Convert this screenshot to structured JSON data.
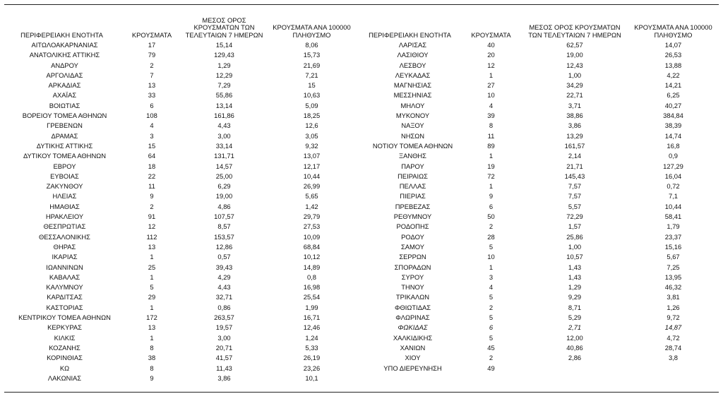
{
  "headers": {
    "region": "ΠΕΡΙΦΕΡΕΙΑΚΗ ΕΝΟΤΗΤΑ",
    "cases": "ΚΡΟΥΣΜΑΤΑ",
    "avg7": "ΜΕΣΟΣ ΟΡΟΣ ΚΡΟΥΣΜΑΤΩΝ ΤΩΝ ΤΕΛΕΥΤΑΙΩΝ 7 ΗΜΕΡΩΝ",
    "per100k": "ΚΡΟΥΣΜΑΤΑ ΑΝΑ 100000 ΠΛΗΘΥΣΜΟ"
  },
  "left_rows": [
    {
      "region": "ΑΙΤΩΛΟΑΚΑΡΝΑΝΙΑΣ",
      "cases": "17",
      "avg7": "15,14",
      "per100k": "8,06"
    },
    {
      "region": "ΑΝΑΤΟΛΙΚΗΣ ΑΤΤΙΚΗΣ",
      "cases": "79",
      "avg7": "129,43",
      "per100k": "15,73"
    },
    {
      "region": "ΑΝΔΡΟΥ",
      "cases": "2",
      "avg7": "1,29",
      "per100k": "21,69"
    },
    {
      "region": "ΑΡΓΟΛΙΔΑΣ",
      "cases": "7",
      "avg7": "12,29",
      "per100k": "7,21"
    },
    {
      "region": "ΑΡΚΑΔΙΑΣ",
      "cases": "13",
      "avg7": "7,29",
      "per100k": "15"
    },
    {
      "region": "ΑΧΑΪΑΣ",
      "cases": "33",
      "avg7": "55,86",
      "per100k": "10,63"
    },
    {
      "region": "ΒΟΙΩΤΙΑΣ",
      "cases": "6",
      "avg7": "13,14",
      "per100k": "5,09"
    },
    {
      "region": "ΒΟΡΕΙΟΥ ΤΟΜΕΑ ΑΘΗΝΩΝ",
      "cases": "108",
      "avg7": "161,86",
      "per100k": "18,25"
    },
    {
      "region": "ΓΡΕΒΕΝΩΝ",
      "cases": "4",
      "avg7": "4,43",
      "per100k": "12,6"
    },
    {
      "region": "ΔΡΑΜΑΣ",
      "cases": "3",
      "avg7": "3,00",
      "per100k": "3,05"
    },
    {
      "region": "ΔΥΤΙΚΗΣ ΑΤΤΙΚΗΣ",
      "cases": "15",
      "avg7": "33,14",
      "per100k": "9,32"
    },
    {
      "region": "ΔΥΤΙΚΟΥ ΤΟΜΕΑ ΑΘΗΝΩΝ",
      "cases": "64",
      "avg7": "131,71",
      "per100k": "13,07"
    },
    {
      "region": "ΕΒΡΟΥ",
      "cases": "18",
      "avg7": "14,57",
      "per100k": "12,17"
    },
    {
      "region": "ΕΥΒΟΙΑΣ",
      "cases": "22",
      "avg7": "25,00",
      "per100k": "10,44"
    },
    {
      "region": "ΖΑΚΥΝΘΟΥ",
      "cases": "11",
      "avg7": "6,29",
      "per100k": "26,99"
    },
    {
      "region": "ΗΛΕΙΑΣ",
      "cases": "9",
      "avg7": "19,00",
      "per100k": "5,65"
    },
    {
      "region": "ΗΜΑΘΙΑΣ",
      "cases": "2",
      "avg7": "4,86",
      "per100k": "1,42"
    },
    {
      "region": "ΗΡΑΚΛΕΙΟΥ",
      "cases": "91",
      "avg7": "107,57",
      "per100k": "29,79"
    },
    {
      "region": "ΘΕΣΠΡΩΤΙΑΣ",
      "cases": "12",
      "avg7": "8,57",
      "per100k": "27,53"
    },
    {
      "region": "ΘΕΣΣΑΛΟΝΙΚΗΣ",
      "cases": "112",
      "avg7": "153,57",
      "per100k": "10,09"
    },
    {
      "region": "ΘΗΡΑΣ",
      "cases": "13",
      "avg7": "12,86",
      "per100k": "68,84"
    },
    {
      "region": "ΙΚΑΡΙΑΣ",
      "cases": "1",
      "avg7": "0,57",
      "per100k": "10,12"
    },
    {
      "region": "ΙΩΑΝΝΙΝΩΝ",
      "cases": "25",
      "avg7": "39,43",
      "per100k": "14,89"
    },
    {
      "region": "ΚΑΒΑΛΑΣ",
      "cases": "1",
      "avg7": "4,29",
      "per100k": "0,8"
    },
    {
      "region": "ΚΑΛΥΜΝΟΥ",
      "cases": "5",
      "avg7": "4,43",
      "per100k": "16,98"
    },
    {
      "region": "ΚΑΡΔΙΤΣΑΣ",
      "cases": "29",
      "avg7": "32,71",
      "per100k": "25,54"
    },
    {
      "region": "ΚΑΣΤΟΡΙΑΣ",
      "cases": "1",
      "avg7": "0,86",
      "per100k": "1,99"
    },
    {
      "region": "ΚΕΝΤΡΙΚΟΥ ΤΟΜΕΑ ΑΘΗΝΩΝ",
      "cases": "172",
      "avg7": "263,57",
      "per100k": "16,71"
    },
    {
      "region": "ΚΕΡΚΥΡΑΣ",
      "cases": "13",
      "avg7": "19,57",
      "per100k": "12,46"
    },
    {
      "region": "ΚΙΛΚΙΣ",
      "cases": "1",
      "avg7": "3,00",
      "per100k": "1,24"
    },
    {
      "region": "ΚΟΖΑΝΗΣ",
      "cases": "8",
      "avg7": "20,71",
      "per100k": "5,33"
    },
    {
      "region": "ΚΟΡΙΝΘΙΑΣ",
      "cases": "38",
      "avg7": "41,57",
      "per100k": "26,19"
    },
    {
      "region": "ΚΩ",
      "cases": "8",
      "avg7": "11,43",
      "per100k": "23,26"
    },
    {
      "region": "ΛΑΚΩΝΙΑΣ",
      "cases": "9",
      "avg7": "3,86",
      "per100k": "10,1"
    }
  ],
  "right_rows": [
    {
      "region": "ΛΑΡΙΣΑΣ",
      "cases": "40",
      "avg7": "62,57",
      "per100k": "14,07"
    },
    {
      "region": "ΛΑΣΙΘΙΟΥ",
      "cases": "20",
      "avg7": "19,00",
      "per100k": "26,53"
    },
    {
      "region": "ΛΕΣΒΟΥ",
      "cases": "12",
      "avg7": "12,43",
      "per100k": "13,88"
    },
    {
      "region": "ΛΕΥΚΑΔΑΣ",
      "cases": "1",
      "avg7": "1,00",
      "per100k": "4,22"
    },
    {
      "region": "ΜΑΓΝΗΣΙΑΣ",
      "cases": "27",
      "avg7": "34,29",
      "per100k": "14,21"
    },
    {
      "region": "ΜΕΣΣΗΝΙΑΣ",
      "cases": "10",
      "avg7": "22,71",
      "per100k": "6,25"
    },
    {
      "region": "ΜΗΛΟΥ",
      "cases": "4",
      "avg7": "3,71",
      "per100k": "40,27"
    },
    {
      "region": "ΜΥΚΟΝΟΥ",
      "cases": "39",
      "avg7": "38,86",
      "per100k": "384,84"
    },
    {
      "region": "ΝΑΞΟΥ",
      "cases": "8",
      "avg7": "3,86",
      "per100k": "38,39"
    },
    {
      "region": "ΝΗΣΩΝ",
      "cases": "11",
      "avg7": "13,29",
      "per100k": "14,74"
    },
    {
      "region": "ΝΟΤΙΟΥ ΤΟΜΕΑ ΑΘΗΝΩΝ",
      "cases": "89",
      "avg7": "161,57",
      "per100k": "16,8"
    },
    {
      "region": "ΞΑΝΘΗΣ",
      "cases": "1",
      "avg7": "2,14",
      "per100k": "0,9"
    },
    {
      "region": "ΠΑΡΟΥ",
      "cases": "19",
      "avg7": "21,71",
      "per100k": "127,29"
    },
    {
      "region": "ΠΕΙΡΑΙΩΣ",
      "cases": "72",
      "avg7": "145,43",
      "per100k": "16,04"
    },
    {
      "region": "ΠΕΛΛΑΣ",
      "cases": "1",
      "avg7": "7,57",
      "per100k": "0,72"
    },
    {
      "region": "ΠΙΕΡΙΑΣ",
      "cases": "9",
      "avg7": "7,57",
      "per100k": "7,1"
    },
    {
      "region": "ΠΡΕΒΕΖΑΣ",
      "cases": "6",
      "avg7": "5,57",
      "per100k": "10,44"
    },
    {
      "region": "ΡΕΘΥΜΝΟΥ",
      "cases": "50",
      "avg7": "72,29",
      "per100k": "58,41"
    },
    {
      "region": "ΡΟΔΟΠΗΣ",
      "cases": "2",
      "avg7": "1,57",
      "per100k": "1,79"
    },
    {
      "region": "ΡΟΔΟΥ",
      "cases": "28",
      "avg7": "25,86",
      "per100k": "23,37"
    },
    {
      "region": "ΣΑΜΟΥ",
      "cases": "5",
      "avg7": "1,00",
      "per100k": "15,16"
    },
    {
      "region": "ΣΕΡΡΩΝ",
      "cases": "10",
      "avg7": "10,57",
      "per100k": "5,67"
    },
    {
      "region": "ΣΠΟΡΑΔΩΝ",
      "cases": "1",
      "avg7": "1,43",
      "per100k": "7,25"
    },
    {
      "region": "ΣΥΡΟΥ",
      "cases": "3",
      "avg7": "1,43",
      "per100k": "13,95"
    },
    {
      "region": "ΤΗΝΟΥ",
      "cases": "4",
      "avg7": "1,29",
      "per100k": "46,32"
    },
    {
      "region": "ΤΡΙΚΑΛΩΝ",
      "cases": "5",
      "avg7": "9,29",
      "per100k": "3,81"
    },
    {
      "region": "ΦΘΙΩΤΙΔΑΣ",
      "cases": "2",
      "avg7": "8,71",
      "per100k": "1,26"
    },
    {
      "region": "ΦΛΩΡΙΝΑΣ",
      "cases": "5",
      "avg7": "5,29",
      "per100k": "9,72"
    },
    {
      "region": "ΦΩΚΙΔΑΣ",
      "cases": "6",
      "avg7": "2,71",
      "per100k": "14,87",
      "italic": true
    },
    {
      "region": "ΧΑΛΚΙΔΙΚΗΣ",
      "cases": "5",
      "avg7": "12,00",
      "per100k": "4,72"
    },
    {
      "region": "ΧΑΝΙΩΝ",
      "cases": "45",
      "avg7": "40,86",
      "per100k": "28,74"
    },
    {
      "region": "ΧΙΟΥ",
      "cases": "2",
      "avg7": "2,86",
      "per100k": "3,8"
    },
    {
      "region": "ΥΠΟ ΔΙΕΡΕΥΝΗΣΗ",
      "cases": "49",
      "avg7": "",
      "per100k": ""
    },
    {
      "region": "",
      "cases": "",
      "avg7": "",
      "per100k": ""
    }
  ]
}
